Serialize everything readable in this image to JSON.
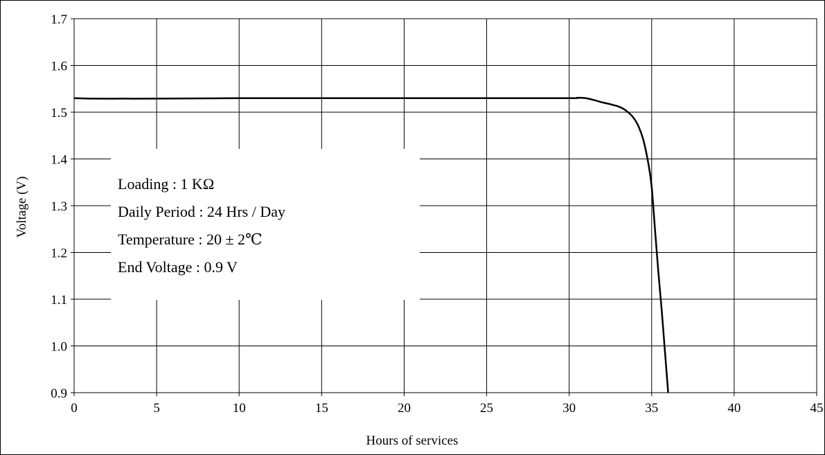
{
  "chart_data": {
    "type": "line",
    "xlabel": "Hours of services",
    "ylabel": "Voltage (V)",
    "xlim": [
      0,
      45
    ],
    "ylim": [
      0.9,
      1.7
    ],
    "x_ticks": [
      "0",
      "5",
      "10",
      "15",
      "20",
      "25",
      "30",
      "35",
      "40",
      "45"
    ],
    "y_ticks": [
      "0.9",
      "1.0",
      "1.1",
      "1.2",
      "1.3",
      "1.4",
      "1.5",
      "1.6",
      "1.7"
    ],
    "grid": true,
    "legend": "none",
    "line_color": "#000000",
    "series": [
      {
        "x": [
          0,
          1,
          3,
          5,
          10,
          15,
          20,
          25,
          30,
          30.5,
          31,
          31.5,
          32,
          32.5,
          33,
          33.3,
          33.6,
          33.9,
          34.2,
          34.5,
          34.8,
          35.0,
          35.2,
          35.4,
          35.6,
          35.8,
          36.0
        ],
        "y": [
          1.53,
          1.529,
          1.529,
          1.529,
          1.53,
          1.53,
          1.53,
          1.53,
          1.53,
          1.531,
          1.53,
          1.526,
          1.521,
          1.517,
          1.512,
          1.507,
          1.499,
          1.488,
          1.47,
          1.44,
          1.39,
          1.34,
          1.25,
          1.16,
          1.08,
          0.99,
          0.9
        ]
      }
    ],
    "annotations": [
      "Loading : 1 KΩ",
      "Daily Period : 24 Hrs / Day",
      "Temperature : 20 ± 2℃",
      "End Voltage :  0.9 V"
    ]
  }
}
